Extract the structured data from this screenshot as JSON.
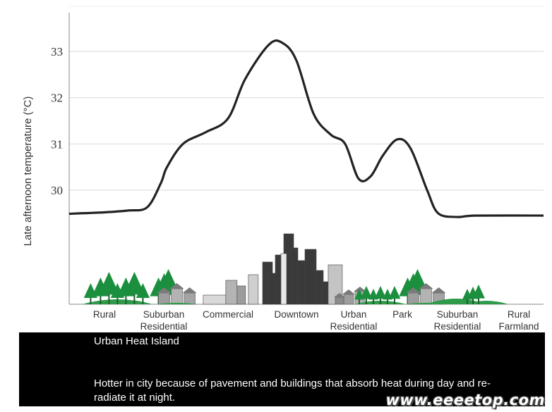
{
  "chart_data": {
    "type": "line",
    "title": "",
    "ylabel": "Late afternoon temperature (°C)",
    "xlabel": "",
    "ylim": [
      29,
      33.2
    ],
    "y_ticks": [
      30,
      31,
      32,
      33
    ],
    "grid": "horizontal",
    "categories": [
      "Rural",
      "Suburban\nResidential",
      "Commercial",
      "Downtown",
      "Urban\nResidential",
      "Park",
      "Suburban\nResidential",
      "Rural\nFarmland"
    ],
    "series": [
      {
        "values": [
          29.6,
          30.5,
          31.5,
          33.2,
          31.2,
          30.2,
          31.1,
          29.4
        ]
      }
    ],
    "curve": [
      [
        0,
        29.52
      ],
      [
        0.4,
        29.56
      ],
      [
        0.72,
        29.63
      ],
      [
        0.95,
        30.15
      ],
      [
        1.05,
        30.5
      ],
      [
        1.3,
        31.0
      ],
      [
        1.65,
        31.25
      ],
      [
        2.0,
        31.55
      ],
      [
        2.25,
        32.4
      ],
      [
        2.6,
        33.15
      ],
      [
        2.8,
        33.18
      ],
      [
        3.0,
        32.8
      ],
      [
        3.3,
        31.65
      ],
      [
        3.6,
        31.2
      ],
      [
        3.85,
        31.0
      ],
      [
        4.1,
        30.25
      ],
      [
        4.35,
        30.3
      ],
      [
        4.6,
        30.75
      ],
      [
        4.9,
        31.1
      ],
      [
        5.15,
        30.9
      ],
      [
        5.45,
        30.0
      ],
      [
        5.65,
        29.5
      ],
      [
        6.0,
        29.42
      ],
      [
        6.3,
        29.45
      ]
    ],
    "scene": [
      {
        "kind": "trees",
        "pos": 0.1
      },
      {
        "kind": "suburban",
        "pos": 1.05
      },
      {
        "kind": "commercial",
        "pos": 2.05
      },
      {
        "kind": "downtown",
        "pos": 3.0
      },
      {
        "kind": "urban",
        "pos": 3.95
      },
      {
        "kind": "park",
        "pos": 4.55
      },
      {
        "kind": "suburban",
        "pos": 5.25
      },
      {
        "kind": "farm",
        "pos": 6.0
      }
    ]
  },
  "caption": {
    "title": "Urban Heat Island",
    "description": "Hotter in city because of pavement and buildings that absorb heat during day and re-radiate it at night."
  },
  "watermark": "www.eeeetop.com",
  "colors": {
    "curve": "#222222",
    "grid": "#d9d9d9",
    "axis": "#888888",
    "ground": "#2e9a4a",
    "tree": "#1c8f3f",
    "building_dark": "#3a3a3a",
    "building_gray": "#9a9a9a",
    "caption_bg": "#000000"
  }
}
